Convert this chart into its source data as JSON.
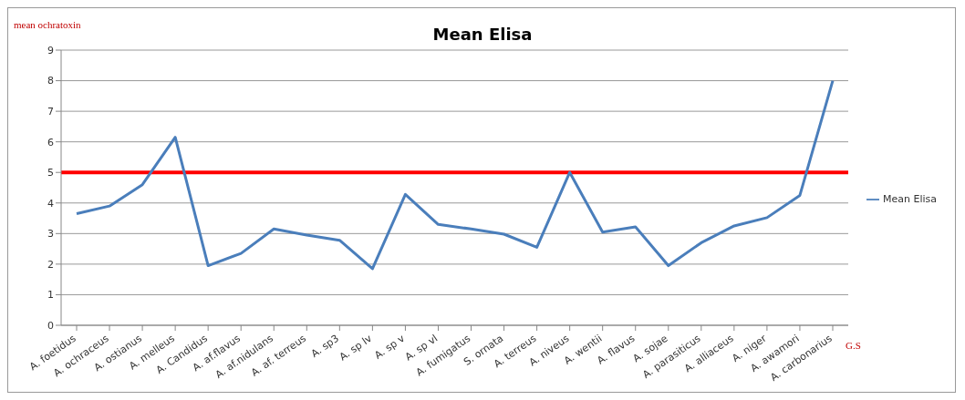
{
  "chart_data": {
    "type": "line",
    "title": "Mean Elisa",
    "ylabel": "mean ochratoxin",
    "xlabel": "G.S",
    "categories": [
      "A. foetidus",
      "A. ochraceus",
      "A. ostianus",
      "A. melleus",
      "A. Candidus",
      "A. af.flavus",
      "A. af.nidulans",
      "A. af. terreus",
      "A. sp3",
      "A. sp lv",
      "A. sp v",
      "A. sp vl",
      "A. fumigatus",
      "S. ornata",
      "A. terreus",
      "A. niveus",
      "A. wentii",
      "A. flavus",
      "A. sojae",
      "A. parasiticus",
      "A. alliaceus",
      "A. niger",
      "A. awamori",
      "A. carbonarius"
    ],
    "series": [
      {
        "name": "Mean Elisa",
        "color": "#4a7ebb",
        "values": [
          3.65,
          3.9,
          4.6,
          6.15,
          1.95,
          2.35,
          3.15,
          2.95,
          2.78,
          1.85,
          4.28,
          3.3,
          3.15,
          2.98,
          2.55,
          5.0,
          3.05,
          3.22,
          1.95,
          2.7,
          3.25,
          3.52,
          4.25,
          8.0
        ]
      }
    ],
    "ylim": [
      0,
      9
    ],
    "yticks": [
      0,
      1,
      2,
      3,
      4,
      5,
      6,
      7,
      8,
      9
    ],
    "grid": "y",
    "legend": "right",
    "marker": "none",
    "line_style": "solid",
    "ref_lines": [
      {
        "axis": "y",
        "value": 5,
        "color": "#ff0000"
      }
    ]
  }
}
